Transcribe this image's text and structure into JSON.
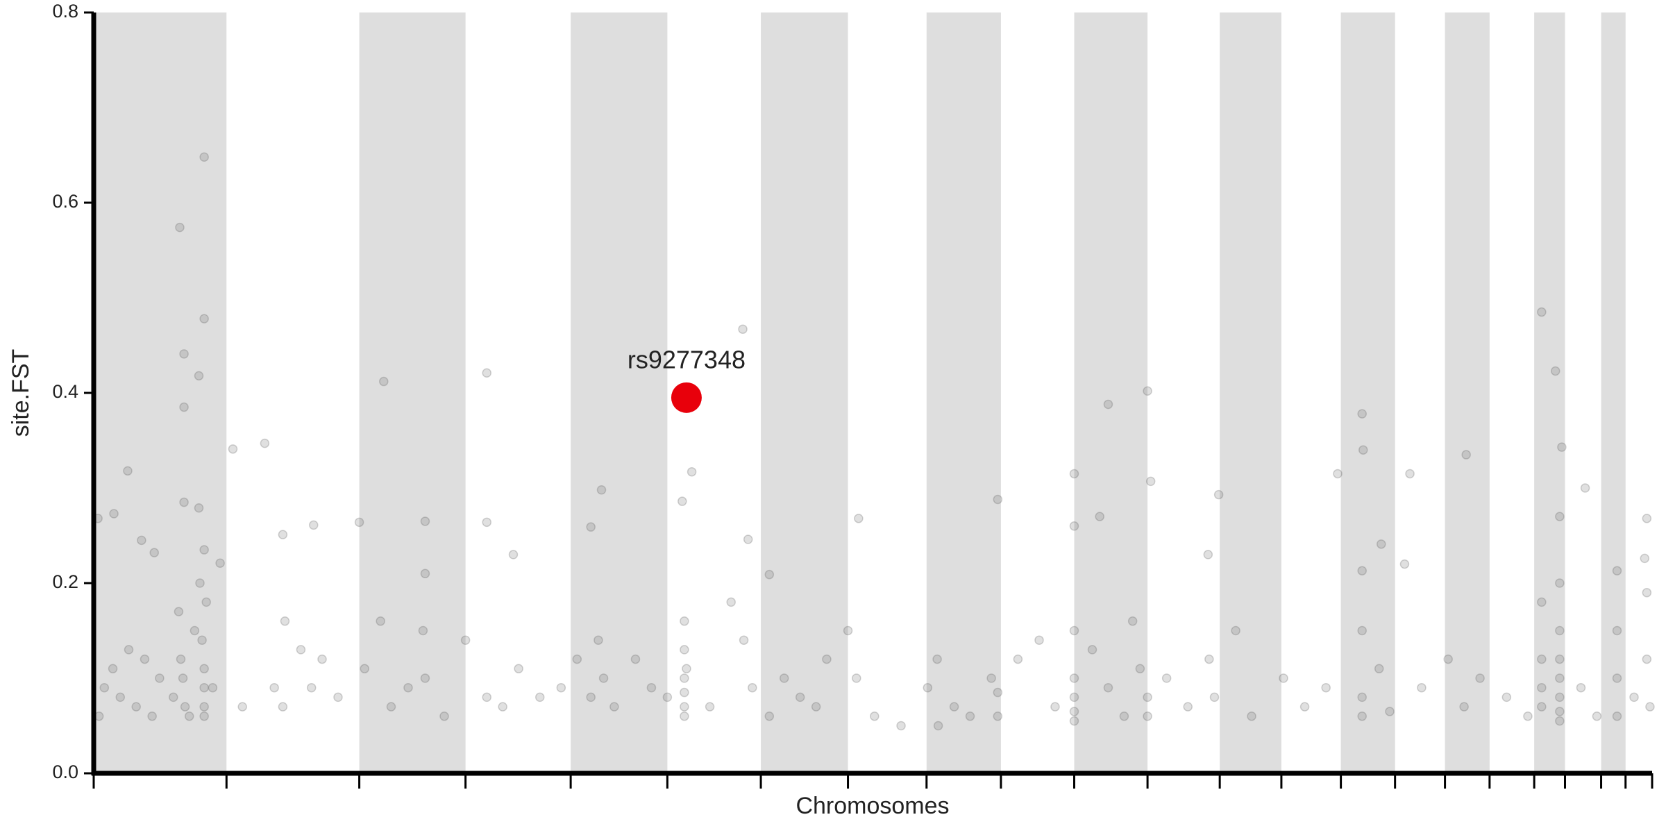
{
  "chart_data": {
    "type": "scatter",
    "xlabel": "Chromosomes",
    "ylabel": "site.FST",
    "xlim": [
      0,
      1467
    ],
    "ylim": [
      0,
      0.8
    ],
    "yticks": [
      {
        "value": 0,
        "label": "0.0"
      },
      0.2,
      0.4,
      0.6,
      0.8
    ],
    "xticks": [
      0,
      125,
      250,
      350,
      449,
      540,
      628,
      710,
      784,
      854,
      923,
      992,
      1060,
      1118,
      1174,
      1225,
      1272,
      1314,
      1356,
      1385,
      1419,
      1442,
      1467
    ],
    "bands": [
      [
        0,
        125
      ],
      [
        250,
        350
      ],
      [
        449,
        540
      ],
      [
        628,
        710
      ],
      [
        784,
        854
      ],
      [
        923,
        992
      ],
      [
        1060,
        1118
      ],
      [
        1174,
        1225
      ],
      [
        1272,
        1314
      ],
      [
        1356,
        1385
      ],
      [
        1419,
        1442
      ]
    ],
    "band_color": "#dedede",
    "color": "#555555",
    "x": [
      81,
      104,
      104,
      85,
      99,
      85,
      85,
      99,
      32,
      19,
      4,
      131,
      161,
      273,
      370,
      611,
      955,
      992,
      1363,
      1376,
      1194,
      1195,
      1292,
      1382,
      1404,
      563,
      554,
      478,
      923,
      851,
      1059,
      1171,
      1239,
      1462,
      178,
      312,
      250,
      370,
      468,
      720,
      995,
      947,
      923,
      616,
      636,
      395,
      207,
      45,
      57,
      104,
      119,
      1194,
      1434,
      1460,
      1049,
      1212,
      1234,
      5,
      10,
      18,
      25,
      33,
      40,
      48,
      55,
      62,
      75,
      80,
      82,
      84,
      86,
      90,
      95,
      100,
      102,
      104,
      104,
      104,
      104,
      106,
      112,
      140,
      170,
      178,
      180,
      195,
      205,
      215,
      230,
      255,
      270,
      280,
      296,
      310,
      312,
      312,
      330,
      350,
      370,
      385,
      400,
      420,
      440,
      455,
      468,
      475,
      480,
      490,
      510,
      525,
      540,
      556,
      556,
      556,
      556,
      556,
      556,
      558,
      580,
      600,
      612,
      620,
      636,
      650,
      665,
      680,
      690,
      710,
      718,
      735,
      760,
      785,
      794,
      795,
      810,
      825,
      845,
      851,
      851,
      870,
      890,
      905,
      923,
      923,
      923,
      923,
      923,
      940,
      955,
      970,
      978,
      985,
      992,
      992,
      1010,
      1030,
      1050,
      1055,
      1075,
      1090,
      1120,
      1140,
      1160,
      1194,
      1194,
      1194,
      1210,
      1220,
      1250,
      1275,
      1290,
      1305,
      1330,
      1350,
      1363,
      1363,
      1363,
      1363,
      1380,
      1380,
      1380,
      1380,
      1380,
      1380,
      1380,
      1380,
      1400,
      1415,
      1434,
      1434,
      1434,
      1450,
      1462,
      1462,
      1465
    ],
    "values": [
      0.574,
      0.648,
      0.478,
      0.441,
      0.418,
      0.385,
      0.285,
      0.279,
      0.318,
      0.273,
      0.268,
      0.341,
      0.347,
      0.412,
      0.421,
      0.467,
      0.388,
      0.402,
      0.485,
      0.423,
      0.378,
      0.34,
      0.335,
      0.343,
      0.3,
      0.317,
      0.286,
      0.298,
      0.315,
      0.288,
      0.293,
      0.315,
      0.315,
      0.268,
      0.251,
      0.265,
      0.264,
      0.264,
      0.259,
      0.268,
      0.307,
      0.27,
      0.26,
      0.246,
      0.209,
      0.23,
      0.261,
      0.245,
      0.232,
      0.235,
      0.221,
      0.213,
      0.213,
      0.226,
      0.23,
      0.241,
      0.22,
      0.06,
      0.09,
      0.11,
      0.08,
      0.13,
      0.07,
      0.12,
      0.06,
      0.1,
      0.08,
      0.17,
      0.12,
      0.1,
      0.07,
      0.06,
      0.15,
      0.2,
      0.14,
      0.11,
      0.09,
      0.07,
      0.06,
      0.18,
      0.09,
      0.07,
      0.09,
      0.07,
      0.16,
      0.13,
      0.09,
      0.12,
      0.08,
      0.11,
      0.16,
      0.07,
      0.09,
      0.15,
      0.21,
      0.1,
      0.06,
      0.14,
      0.08,
      0.07,
      0.11,
      0.08,
      0.09,
      0.12,
      0.08,
      0.14,
      0.1,
      0.07,
      0.12,
      0.09,
      0.08,
      0.16,
      0.13,
      0.1,
      0.085,
      0.07,
      0.06,
      0.11,
      0.07,
      0.18,
      0.14,
      0.09,
      0.06,
      0.1,
      0.08,
      0.07,
      0.12,
      0.15,
      0.1,
      0.06,
      0.05,
      0.09,
      0.12,
      0.05,
      0.07,
      0.06,
      0.1,
      0.085,
      0.06,
      0.12,
      0.14,
      0.07,
      0.15,
      0.1,
      0.08,
      0.065,
      0.055,
      0.13,
      0.09,
      0.06,
      0.16,
      0.11,
      0.08,
      0.06,
      0.1,
      0.07,
      0.12,
      0.08,
      0.15,
      0.06,
      0.1,
      0.07,
      0.09,
      0.15,
      0.08,
      0.06,
      0.11,
      0.065,
      0.09,
      0.12,
      0.07,
      0.1,
      0.08,
      0.06,
      0.18,
      0.12,
      0.09,
      0.07,
      0.27,
      0.2,
      0.15,
      0.12,
      0.1,
      0.08,
      0.065,
      0.055,
      0.09,
      0.06,
      0.15,
      0.1,
      0.06,
      0.08,
      0.19,
      0.12,
      0.07
    ],
    "highlight": {
      "label": "rs9277348",
      "x": 558,
      "value": 0.395,
      "color": "#e8000b"
    }
  }
}
